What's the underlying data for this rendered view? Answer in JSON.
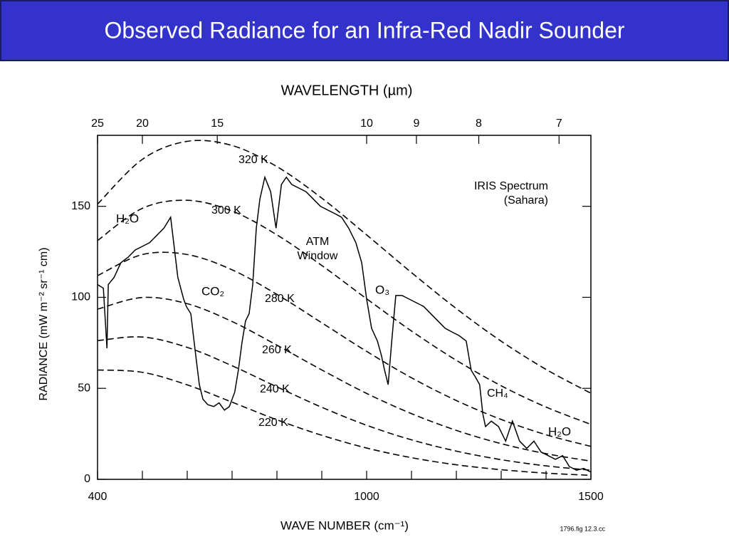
{
  "slide": {
    "title": "Observed Radiance for an Infra-Red Nadir Sounder"
  },
  "chart_data": {
    "type": "line",
    "xlabel": "WAVE NUMBER (cm⁻¹)",
    "ylabel": "RADIANCE (mW m⁻² sr⁻¹ cm)",
    "x2label": "WAVELENGTH (µm)",
    "xlim": [
      400,
      1500
    ],
    "ylim": [
      0,
      189
    ],
    "xticks": [
      400,
      1000,
      1500
    ],
    "xminor": [
      500,
      600,
      700,
      800,
      900,
      1100,
      1200,
      1300,
      1400
    ],
    "yticks": [
      0,
      50,
      100,
      150
    ],
    "x2ticks": [
      {
        "value": 400,
        "label": "25"
      },
      {
        "value": 500,
        "label": "20"
      },
      {
        "value": 667,
        "label": "15"
      },
      {
        "value": 1000,
        "label": "10"
      },
      {
        "value": 1111,
        "label": "9"
      },
      {
        "value": 1250,
        "label": "8"
      },
      {
        "value": 1429,
        "label": "7"
      }
    ],
    "series": [
      {
        "name": "320 K",
        "color": "#000000",
        "line_style": "dashed",
        "x": [
          400,
          500,
          600,
          700,
          800,
          900,
          1000,
          1100,
          1200,
          1300,
          1400,
          1500
        ],
        "values": [
          151.2,
          175.8,
          185.7,
          183.4,
          171.8,
          154.5,
          134.3,
          113.6,
          93.8,
          75.9,
          60.4,
          47.3
        ]
      },
      {
        "name": "300 K",
        "color": "#000000",
        "line_style": "dashed",
        "x": [
          400,
          500,
          600,
          700,
          800,
          900,
          1000,
          1100,
          1200,
          1300,
          1400,
          1500
        ],
        "values": [
          131.2,
          148.9,
          153.3,
          147.4,
          134.3,
          117.5,
          99.2,
          81.5,
          65.4,
          51.4,
          39.7,
          30.2
        ]
      },
      {
        "name": "280 K",
        "color": "#000000",
        "line_style": "dashed",
        "x": [
          400,
          500,
          600,
          700,
          800,
          900,
          1000,
          1100,
          1200,
          1300,
          1400,
          1500
        ],
        "values": [
          111.9,
          123.5,
          123.5,
          115.1,
          101.6,
          86.0,
          70.3,
          55.8,
          43.3,
          32.9,
          24.5,
          18.1
        ]
      },
      {
        "name": "260 K",
        "color": "#000000",
        "line_style": "dashed",
        "x": [
          400,
          500,
          600,
          700,
          800,
          900,
          1000,
          1100,
          1200,
          1300,
          1400,
          1500
        ],
        "values": [
          93.5,
          99.9,
          96.5,
          86.7,
          73.7,
          60.1,
          47.2,
          36.1,
          26.9,
          19.6,
          14.1,
          10.0
        ]
      },
      {
        "name": "240 K",
        "color": "#000000",
        "line_style": "dashed",
        "x": [
          400,
          500,
          600,
          700,
          800,
          900,
          1000,
          1100,
          1200,
          1300,
          1400,
          1500
        ],
        "values": [
          76.2,
          78.2,
          72.5,
          62.4,
          50.8,
          39.6,
          29.7,
          21.7,
          15.5,
          10.8,
          7.4,
          5.0
        ]
      },
      {
        "name": "220 K",
        "color": "#000000",
        "line_style": "dashed",
        "x": [
          400,
          500,
          600,
          700,
          800,
          900,
          1000,
          1100,
          1200,
          1300,
          1400,
          1500
        ],
        "values": [
          60.1,
          58.8,
          51.9,
          42.4,
          32.7,
          24.2,
          17.2,
          11.9,
          8.0,
          5.3,
          3.4,
          2.2
        ]
      },
      {
        "name": "IRIS Spectrum",
        "color": "#000000",
        "line_style": "solid",
        "x": [
          400,
          413,
          421,
          424,
          437,
          452,
          468,
          484,
          500,
          516,
          532,
          548,
          563,
          579,
          592,
          598,
          608,
          619,
          627,
          635,
          646,
          659,
          671,
          683,
          694,
          706,
          714,
          722,
          730,
          738,
          746,
          754,
          762,
          773,
          786,
          798,
          810,
          821,
          833,
          849,
          865,
          881,
          897,
          913,
          929,
          944,
          960,
          976,
          989,
          1000,
          1011,
          1024,
          1033,
          1040,
          1048,
          1056,
          1065,
          1079,
          1095,
          1111,
          1127,
          1143,
          1159,
          1175,
          1190,
          1206,
          1222,
          1233,
          1243,
          1252,
          1259,
          1265,
          1278,
          1294,
          1310,
          1325,
          1341,
          1357,
          1373,
          1389,
          1405,
          1421,
          1437,
          1452,
          1468,
          1484,
          1500
        ],
        "values": [
          107,
          105,
          72,
          107,
          111,
          119,
          122,
          126,
          128,
          130,
          134,
          138,
          144,
          111,
          99,
          95,
          91,
          68,
          52,
          44,
          41,
          40,
          42,
          38,
          40,
          48,
          60,
          75,
          87,
          91,
          107,
          138,
          154,
          166,
          158,
          138,
          162,
          166,
          162,
          160,
          158,
          154,
          150,
          148,
          146,
          144,
          138,
          130,
          119,
          99,
          83,
          76,
          68,
          60,
          52,
          76,
          101,
          101,
          99,
          97,
          95,
          91,
          87,
          83,
          81,
          79,
          76,
          60,
          56,
          52,
          36,
          29,
          32,
          29,
          21,
          32,
          21,
          17,
          21,
          15,
          13,
          11,
          13,
          7,
          5,
          6,
          4
        ]
      }
    ],
    "annotations": [
      "H₂O",
      "CO₂",
      "ATM",
      "Window",
      "O₃",
      "CH₄",
      "H₂O",
      "(Sahara)",
      "1796.fig 12.3.cc"
    ]
  }
}
